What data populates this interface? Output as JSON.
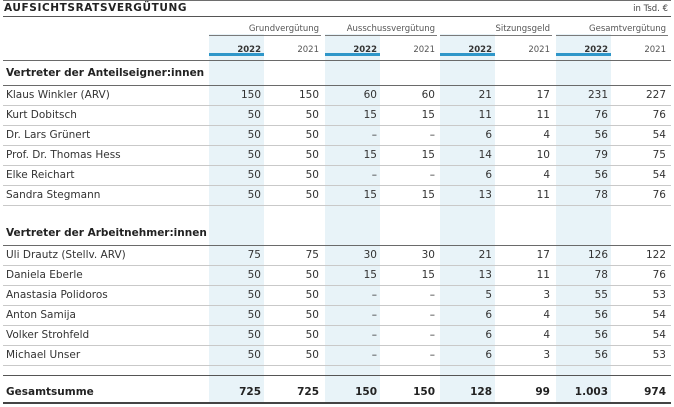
{
  "title": "AUFSICHTSRATSVERGÜTUNG",
  "unit_note": "in Tsd. €",
  "groups": [
    "Grundvergütung",
    "Ausschussvergütung",
    "Sitzungsgeld",
    "Gesamtvergütung"
  ],
  "years": [
    "2022",
    "2021"
  ],
  "sections": [
    {
      "label": "Vertreter der Anteilseigner:innen",
      "rows": [
        {
          "name": "Klaus Winkler (ARV)",
          "values": [
            "150",
            "150",
            "60",
            "60",
            "21",
            "17",
            "231",
            "227"
          ]
        },
        {
          "name": "Kurt Dobitsch",
          "values": [
            "50",
            "50",
            "15",
            "15",
            "11",
            "11",
            "76",
            "76"
          ]
        },
        {
          "name": "Dr. Lars Grünert",
          "values": [
            "50",
            "50",
            "–",
            "–",
            "6",
            "4",
            "56",
            "54"
          ]
        },
        {
          "name": "Prof. Dr. Thomas Hess",
          "values": [
            "50",
            "50",
            "15",
            "15",
            "14",
            "10",
            "79",
            "75"
          ]
        },
        {
          "name": "Elke Reichart",
          "values": [
            "50",
            "50",
            "–",
            "–",
            "6",
            "4",
            "56",
            "54"
          ]
        },
        {
          "name": "Sandra Stegmann",
          "values": [
            "50",
            "50",
            "15",
            "15",
            "13",
            "11",
            "78",
            "76"
          ]
        }
      ]
    },
    {
      "label": "Vertreter der Arbeitnehmer:innen",
      "rows": [
        {
          "name": "Uli Drautz (Stellv. ARV)",
          "values": [
            "75",
            "75",
            "30",
            "30",
            "21",
            "17",
            "126",
            "122"
          ]
        },
        {
          "name": "Daniela Eberle",
          "values": [
            "50",
            "50",
            "15",
            "15",
            "13",
            "11",
            "78",
            "76"
          ]
        },
        {
          "name": "Anastasia Polidoros",
          "values": [
            "50",
            "50",
            "–",
            "–",
            "5",
            "3",
            "55",
            "53"
          ]
        },
        {
          "name": "Anton Samija",
          "values": [
            "50",
            "50",
            "–",
            "–",
            "6",
            "4",
            "56",
            "54"
          ]
        },
        {
          "name": "Volker Strohfeld",
          "values": [
            "50",
            "50",
            "–",
            "–",
            "6",
            "4",
            "56",
            "54"
          ]
        },
        {
          "name": "Michael Unser",
          "values": [
            "50",
            "50",
            "–",
            "–",
            "6",
            "3",
            "56",
            "53"
          ]
        }
      ]
    }
  ],
  "total": {
    "label": "Gesamtsumme",
    "values": [
      "725",
      "725",
      "150",
      "150",
      "128",
      "99",
      "1.003",
      "974"
    ]
  }
}
